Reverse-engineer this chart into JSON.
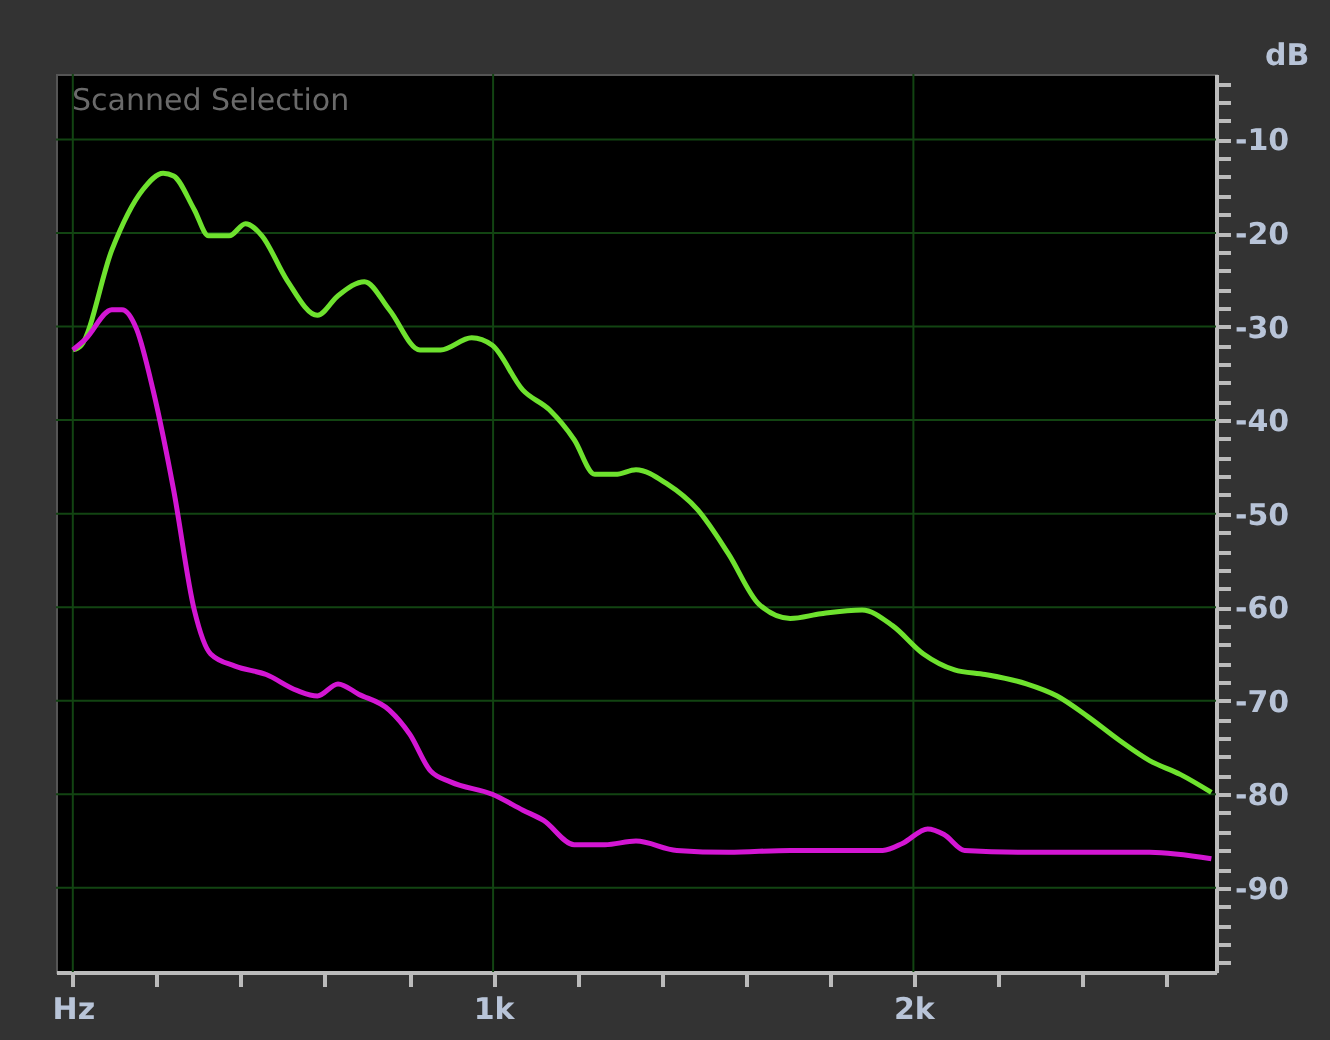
{
  "chart_data": {
    "type": "line",
    "title": "Scanned Selection",
    "ylabel": "dB",
    "xlim": [
      -40,
      2720
    ],
    "ylim": [
      -99,
      -3
    ],
    "xticks": [
      {
        "value": 0,
        "label": "Hz"
      },
      {
        "value": 200,
        "label": null
      },
      {
        "value": 400,
        "label": null
      },
      {
        "value": 600,
        "label": null
      },
      {
        "value": 800,
        "label": null
      },
      {
        "value": 1000,
        "label": "1k"
      },
      {
        "value": 1200,
        "label": null
      },
      {
        "value": 1400,
        "label": null
      },
      {
        "value": 1600,
        "label": null
      },
      {
        "value": 1800,
        "label": null
      },
      {
        "value": 2000,
        "label": "2k"
      },
      {
        "value": 2200,
        "label": null
      },
      {
        "value": 2400,
        "label": null
      },
      {
        "value": 2600,
        "label": null
      }
    ],
    "yticks": [
      {
        "value": -4,
        "label": null
      },
      {
        "value": -6,
        "label": null
      },
      {
        "value": -8,
        "label": null
      },
      -10,
      {
        "value": -12,
        "label": null
      },
      {
        "value": -14,
        "label": null
      },
      {
        "value": -16,
        "label": null
      },
      {
        "value": -18,
        "label": null
      },
      -20,
      {
        "value": -22,
        "label": null
      },
      {
        "value": -24,
        "label": null
      },
      {
        "value": -26,
        "label": null
      },
      {
        "value": -28,
        "label": null
      },
      -30,
      {
        "value": -32,
        "label": null
      },
      {
        "value": -34,
        "label": null
      },
      {
        "value": -36,
        "label": null
      },
      {
        "value": -38,
        "label": null
      },
      -40,
      {
        "value": -42,
        "label": null
      },
      {
        "value": -44,
        "label": null
      },
      {
        "value": -46,
        "label": null
      },
      {
        "value": -48,
        "label": null
      },
      -50,
      {
        "value": -52,
        "label": null
      },
      {
        "value": -54,
        "label": null
      },
      {
        "value": -56,
        "label": null
      },
      {
        "value": -58,
        "label": null
      },
      -60,
      {
        "value": -62,
        "label": null
      },
      {
        "value": -64,
        "label": null
      },
      {
        "value": -66,
        "label": null
      },
      {
        "value": -68,
        "label": null
      },
      -70,
      {
        "value": -72,
        "label": null
      },
      {
        "value": -74,
        "label": null
      },
      {
        "value": -76,
        "label": null
      },
      {
        "value": -78,
        "label": null
      },
      -80,
      {
        "value": -82,
        "label": null
      },
      {
        "value": -84,
        "label": null
      },
      {
        "value": -86,
        "label": null
      },
      {
        "value": -88,
        "label": null
      },
      -90,
      {
        "value": -92,
        "label": null
      },
      {
        "value": -94,
        "label": null
      },
      {
        "value": -96,
        "label": null
      },
      {
        "value": -98,
        "label": null
      }
    ],
    "grid": true,
    "marker": "none",
    "line_style": "solid",
    "series": [
      {
        "color": "#6ee22e",
        "x": [
          0,
          20,
          93,
          166,
          215,
          240,
          289,
          323,
          372,
          411,
          450,
          509,
          582,
          631,
          694,
          753,
          826,
          875,
          949,
          998,
          1071,
          1134,
          1193,
          1242,
          1291,
          1340,
          1413,
          1487,
          1560,
          1633,
          1707,
          1780,
          1878,
          1951,
          2024,
          2098,
          2171,
          2269,
          2342,
          2415,
          2489,
          2562,
          2636,
          2709
        ],
        "values": [
          -32.5,
          -32,
          -21.8,
          -15.4,
          -13.6,
          -13.9,
          -17.5,
          -20.3,
          -20.3,
          -19,
          -20.3,
          -25,
          -28.8,
          -26.7,
          -25.2,
          -28.2,
          -32.5,
          -32.5,
          -31.2,
          -32,
          -36.8,
          -38.9,
          -42.1,
          -45.8,
          -45.8,
          -45.3,
          -46.8,
          -49.6,
          -54.3,
          -59.7,
          -61.2,
          -60.7,
          -60.3,
          -62,
          -65,
          -66.7,
          -67.2,
          -68.2,
          -69.5,
          -71.7,
          -74.2,
          -76.4,
          -77.9,
          -79.8
        ]
      },
      {
        "color": "#d316d3",
        "x": [
          0,
          29,
          93,
          117,
          152,
          191,
          240,
          289,
          328,
          386,
          460,
          533,
          582,
          631,
          680,
          753,
          802,
          851,
          900,
          998,
          1071,
          1120,
          1193,
          1266,
          1340,
          1437,
          1560,
          1707,
          1927,
          1976,
          2034,
          2073,
          2122,
          2269,
          2562,
          2709
        ],
        "values": [
          -32.5,
          -31.4,
          -28.2,
          -28.2,
          -30.3,
          -36.8,
          -47.5,
          -60.3,
          -65,
          -66.3,
          -67.2,
          -68.9,
          -69.5,
          -68.2,
          -69.3,
          -71,
          -73.6,
          -77.5,
          -78.7,
          -80,
          -81.7,
          -82.8,
          -85.4,
          -85.4,
          -85,
          -86,
          -86.2,
          -86,
          -86,
          -85.2,
          -83.7,
          -84.3,
          -86,
          -86.2,
          -86.2,
          -86.9
        ]
      }
    ]
  }
}
